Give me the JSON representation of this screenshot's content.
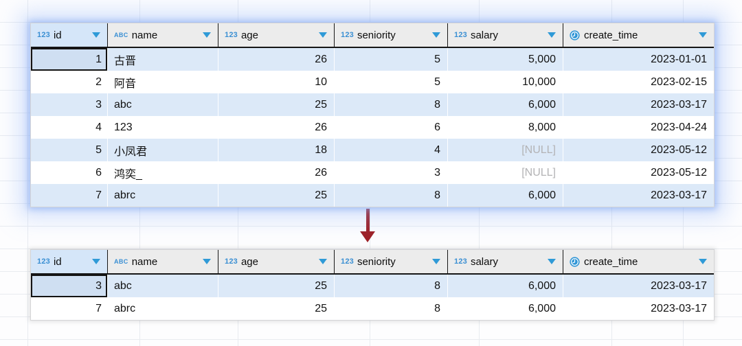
{
  "columns": [
    {
      "label": "id",
      "type": "number",
      "type_label": "123"
    },
    {
      "label": "name",
      "type": "text",
      "type_label": "ABC"
    },
    {
      "label": "age",
      "type": "number",
      "type_label": "123"
    },
    {
      "label": "seniority",
      "type": "number",
      "type_label": "123"
    },
    {
      "label": "salary",
      "type": "number",
      "type_label": "123"
    },
    {
      "label": "create_time",
      "type": "datetime",
      "type_label": ""
    }
  ],
  "null_text": "[NULL]",
  "table_top": {
    "focused_cell": [
      0,
      0
    ],
    "rows": [
      [
        "1",
        "古晋",
        "26",
        "5",
        "5,000",
        "2023-01-01"
      ],
      [
        "2",
        "阿音",
        "10",
        "5",
        "10,000",
        "2023-02-15"
      ],
      [
        "3",
        "abc",
        "25",
        "8",
        "6,000",
        "2023-03-17"
      ],
      [
        "4",
        "123",
        "26",
        "6",
        "8,000",
        "2023-04-24"
      ],
      [
        "5",
        "小凤君",
        "18",
        "4",
        "[NULL]",
        "2023-05-12"
      ],
      [
        "6",
        "鸿奕_",
        "26",
        "3",
        "[NULL]",
        "2023-05-12"
      ],
      [
        "7",
        "abrc",
        "25",
        "8",
        "6,000",
        "2023-03-17"
      ]
    ]
  },
  "table_bottom": {
    "focused_cell": [
      0,
      0
    ],
    "rows": [
      [
        "3",
        "abc",
        "25",
        "8",
        "6,000",
        "2023-03-17"
      ],
      [
        "7",
        "abrc",
        "25",
        "8",
        "6,000",
        "2023-03-17"
      ]
    ]
  },
  "colors": {
    "accent_blue": "#3a8fd3",
    "dropdown_blue": "#2f9ad7",
    "selected_header_bg": "#d5e6f9",
    "row_stripe_blue": "#dce9f8",
    "selection_glow": "#8cb2f8",
    "arrow_red": "#9e2026",
    "null_gray": "#b3b3b5"
  }
}
